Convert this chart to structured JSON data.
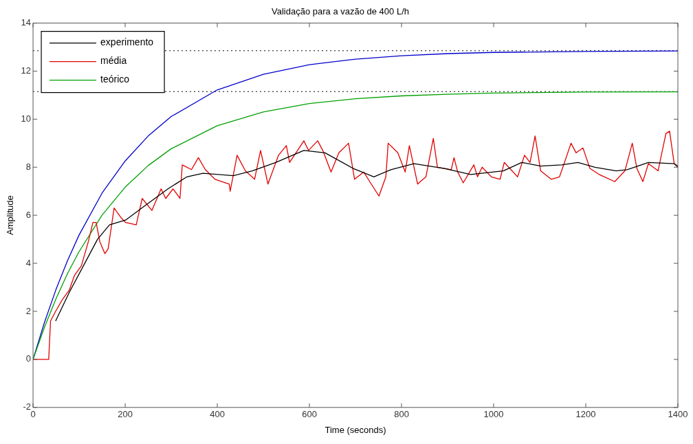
{
  "chart_data": {
    "type": "line",
    "title": "Validação para a vazão de 400 L/h",
    "xlabel": "Time (seconds)",
    "ylabel": "Amplitude",
    "xlim": [
      0,
      1400
    ],
    "xticks": [
      0,
      200,
      400,
      600,
      800,
      1000,
      1200,
      1400
    ],
    "ylim": [
      -2,
      14
    ],
    "yticks": [
      -2,
      0,
      2,
      4,
      6,
      8,
      10,
      12,
      14
    ],
    "grid": false,
    "legend": "top left",
    "marker": "none",
    "line_style": "solid",
    "ref_lines": [
      {
        "axis": "y",
        "value": 12.85,
        "color": "#000000",
        "line_style": "dotted"
      },
      {
        "axis": "y",
        "value": 11.15,
        "color": "#000000",
        "line_style": "dotted"
      }
    ],
    "series": [
      {
        "name": "experimento",
        "color": "#000000",
        "x": [
          49,
          79,
          115,
          140,
          166,
          201,
          243,
          293,
          334,
          369,
          435,
          476,
          527,
          588,
          634,
          695,
          740,
          777,
          827,
          893,
          950,
          1021,
          1061,
          1102,
          1148,
          1183,
          1220,
          1266,
          1290,
          1336,
          1392,
          1400
        ],
        "values": [
          1.6,
          2.8,
          4.1,
          5.0,
          5.6,
          5.8,
          6.4,
          7.1,
          7.6,
          7.75,
          7.65,
          7.85,
          8.2,
          8.7,
          8.6,
          7.95,
          7.6,
          7.9,
          8.15,
          7.95,
          7.7,
          7.85,
          8.2,
          8.05,
          8.1,
          8.2,
          8.0,
          7.85,
          7.9,
          8.2,
          8.15,
          8.0
        ]
      },
      {
        "name": "média",
        "color": "#e00000",
        "x": [
          0,
          34,
          38,
          49,
          64,
          79,
          90,
          105,
          120,
          130,
          137,
          145,
          156,
          163,
          176,
          191,
          201,
          224,
          237,
          258,
          278,
          288,
          304,
          319,
          324,
          344,
          359,
          374,
          395,
          426,
          428,
          443,
          461,
          481,
          494,
          510,
          533,
          550,
          557,
          588,
          598,
          618,
          629,
          647,
          664,
          685,
          698,
          718,
          731,
          751,
          766,
          771,
          792,
          808,
          817,
          835,
          853,
          869,
          878,
          908,
          914,
          922,
          934,
          957,
          965,
          975,
          995,
          1014,
          1023,
          1052,
          1067,
          1079,
          1090,
          1102,
          1125,
          1143,
          1153,
          1168,
          1179,
          1194,
          1209,
          1229,
          1263,
          1285,
          1301,
          1311,
          1324,
          1336,
          1357,
          1374,
          1382,
          1392,
          1400
        ],
        "values": [
          0,
          0,
          1.6,
          2.0,
          2.5,
          2.9,
          3.5,
          3.9,
          4.9,
          5.7,
          5.7,
          4.9,
          4.4,
          4.6,
          6.3,
          5.9,
          5.7,
          5.6,
          6.7,
          6.2,
          7.1,
          6.7,
          7.1,
          6.7,
          8.1,
          7.9,
          8.4,
          7.9,
          7.5,
          7.3,
          7.0,
          8.5,
          7.85,
          7.5,
          8.7,
          7.3,
          8.5,
          8.9,
          8.2,
          9.1,
          8.7,
          9.1,
          8.7,
          7.8,
          8.6,
          9.0,
          7.5,
          7.8,
          7.4,
          6.8,
          7.6,
          9.0,
          8.6,
          7.8,
          8.9,
          7.3,
          7.6,
          9.2,
          8.0,
          7.9,
          8.4,
          7.8,
          7.35,
          8.1,
          7.6,
          8.0,
          7.6,
          7.5,
          8.2,
          7.6,
          8.5,
          8.2,
          9.3,
          7.85,
          7.5,
          7.6,
          8.15,
          9.0,
          8.6,
          8.8,
          7.95,
          7.7,
          7.4,
          7.85,
          9.0,
          7.95,
          7.4,
          8.15,
          7.85,
          9.4,
          9.5,
          8.15,
          8.05
        ]
      },
      {
        "name": "teórico",
        "color": "#00a000",
        "x": [
          0,
          25,
          50,
          75,
          100,
          150,
          200,
          250,
          300,
          400,
          500,
          600,
          700,
          800,
          900,
          1000,
          1200,
          1400
        ],
        "values": [
          0,
          1.35,
          2.53,
          3.58,
          4.49,
          6.01,
          7.17,
          8.07,
          8.77,
          9.73,
          10.3,
          10.65,
          10.85,
          10.97,
          11.04,
          11.09,
          11.13,
          11.14
        ]
      },
      {
        "color": "#0000cc",
        "x": [
          0,
          25,
          50,
          75,
          100,
          150,
          200,
          250,
          300,
          400,
          500,
          600,
          700,
          800,
          900,
          1000,
          1200,
          1400
        ],
        "values": [
          0,
          1.55,
          2.92,
          4.12,
          5.18,
          6.93,
          8.26,
          9.3,
          10.11,
          11.22,
          11.87,
          12.27,
          12.5,
          12.64,
          12.73,
          12.78,
          12.82,
          12.84
        ]
      }
    ]
  }
}
